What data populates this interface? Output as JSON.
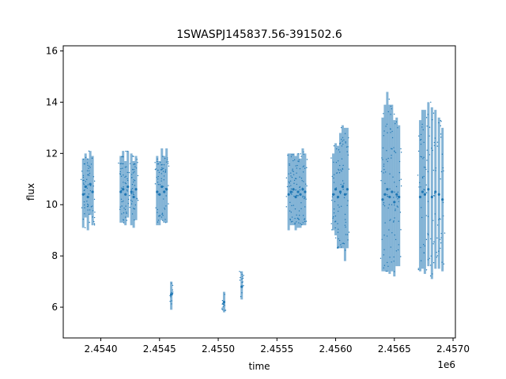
{
  "chart_data": {
    "type": "scatter",
    "title": "1SWASPJ145837.56-391502.6",
    "xlabel": "time",
    "ylabel": "flux",
    "x_offset_label": "1e6",
    "xlim": [
      2453680,
      2457020
    ],
    "ylim": [
      4.8,
      16.2
    ],
    "x_ticks": [
      2.454,
      2.4545,
      2.455,
      2.4555,
      2.456,
      2.4565,
      2.457
    ],
    "x_tick_labels": [
      "2.4540",
      "2.4545",
      "2.4550",
      "2.4555",
      "2.4560",
      "2.4565",
      "2.4570"
    ],
    "y_ticks": [
      6,
      8,
      10,
      12,
      14,
      16
    ],
    "y_tick_labels": [
      "6",
      "8",
      "10",
      "12",
      "14",
      "16"
    ],
    "grid": false,
    "legend": "none",
    "marker_color": "#1f77b4",
    "series": [
      {
        "x": [
          2453850,
          2453870,
          2453890,
          2453910,
          2453930,
          2454170,
          2454190,
          2454210,
          2454230,
          2454260,
          2454280,
          2454300,
          2454480,
          2454500,
          2454520,
          2454540,
          2454560,
          2454600,
          2455050,
          2455200,
          2455600,
          2455620,
          2455640,
          2455660,
          2455680,
          2455700,
          2455720,
          2455740,
          2455980,
          2456000,
          2456020,
          2456040,
          2456060,
          2456080,
          2456100,
          2456400,
          2456420,
          2456440,
          2456460,
          2456480,
          2456500,
          2456520,
          2456540,
          2456720,
          2456740,
          2456760,
          2456790,
          2456820,
          2456850,
          2456880,
          2456910
        ],
        "y": [
          10.4,
          10.7,
          10.3,
          10.8,
          10.5,
          10.5,
          10.6,
          10.4,
          10.7,
          10.5,
          10.3,
          10.6,
          10.5,
          10.4,
          10.7,
          10.5,
          10.6,
          6.5,
          6.2,
          6.8,
          10.4,
          10.5,
          10.6,
          10.3,
          10.5,
          10.4,
          10.6,
          10.5,
          10.4,
          10.6,
          10.3,
          10.5,
          10.7,
          10.4,
          10.6,
          10.2,
          10.4,
          10.6,
          10.3,
          10.5,
          10.1,
          10.4,
          10.3,
          10.3,
          10.5,
          10.4,
          10.6,
          10.3,
          10.5,
          10.4,
          10.2
        ],
        "yerr_low": [
          1.3,
          1.2,
          1.3,
          1.2,
          1.3,
          1.2,
          1.3,
          1.2,
          1.2,
          1.3,
          1.2,
          1.2,
          1.3,
          1.2,
          1.3,
          1.2,
          1.3,
          0.6,
          0.4,
          0.5,
          1.4,
          1.3,
          1.4,
          1.3,
          1.4,
          1.3,
          1.4,
          1.3,
          1.4,
          1.8,
          2.0,
          2.2,
          2.4,
          2.6,
          2.3,
          2.8,
          3.0,
          3.2,
          3.0,
          3.1,
          2.9,
          2.8,
          2.7,
          2.9,
          3.0,
          3.1,
          3.0,
          3.2,
          3.0,
          2.9,
          2.8
        ],
        "yerr_high": [
          1.4,
          1.3,
          1.5,
          1.3,
          1.4,
          1.4,
          1.5,
          1.3,
          1.4,
          1.5,
          1.4,
          1.3,
          1.4,
          1.3,
          1.5,
          1.4,
          1.6,
          0.5,
          0.4,
          0.6,
          1.6,
          1.5,
          1.4,
          1.6,
          1.5,
          1.4,
          1.6,
          1.5,
          1.6,
          1.8,
          2.0,
          2.3,
          2.4,
          2.6,
          2.4,
          3.2,
          3.5,
          3.8,
          3.6,
          3.4,
          3.2,
          3.0,
          2.8,
          3.0,
          3.2,
          3.3,
          3.4,
          3.5,
          3.2,
          3.0,
          2.8
        ]
      }
    ]
  }
}
